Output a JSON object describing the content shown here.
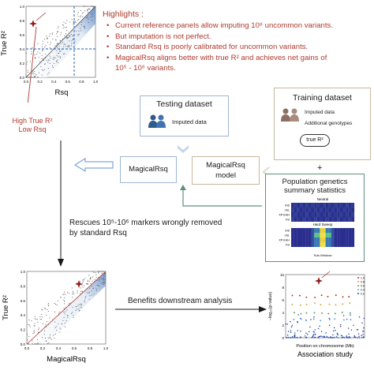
{
  "top_scatter": {
    "ylabel": "True R²",
    "xlabel": "Rsq",
    "yticks": [
      "1.0",
      "0.8",
      "0.6",
      "0.4",
      "0.2",
      "0.0"
    ],
    "xticks": [
      "0.0",
      "0.2",
      "0.4",
      "0.6",
      "0.8",
      "1.0"
    ]
  },
  "annotation": {
    "line1": "High True R²",
    "line2": "Low Rsq"
  },
  "highlights": {
    "title": "Highlights :",
    "items": [
      "Current reference panels allow imputing 10⁸ uncommon variants.",
      "But imputation is not perfect.",
      "Standard Rsq is poorly calibrated for uncommon variants.",
      "MagicalRsq aligns better with true R² and achieves net gains of",
      "10⁵ - 10⁶ variants."
    ]
  },
  "testing": {
    "title": "Testing dataset",
    "item": "Imputed data"
  },
  "training": {
    "title": "Training dataset",
    "item1": "Imputed data",
    "item2": "Additional genotypes",
    "pill": "true R²"
  },
  "model": {
    "output": "MagicalRsq",
    "model_line1": "MagicalRsq",
    "model_line2": "model"
  },
  "plus": "+",
  "popgen": {
    "line1": "Population genetics",
    "line2": "summary statistics",
    "panel1": "Neutral",
    "panel2": "Hard Sweep",
    "rows": [
      "iHS",
      "nSL",
      "XP-EHH",
      "Fst"
    ],
    "xaxis": "Sub-Window"
  },
  "rescues": {
    "line1": "Rescues 10⁵-10⁶ markers wrongly removed",
    "line2": "by standard Rsq"
  },
  "bottom_scatter": {
    "ylabel": "True R²",
    "xlabel": "MagicalRsq",
    "yticks": [
      "1.0",
      "0.8",
      "0.6",
      "0.4",
      "0.2",
      "0.0"
    ],
    "xticks": [
      "0.0",
      "0.2",
      "0.4",
      "0.6",
      "0.8",
      "1.0"
    ]
  },
  "benefits": "Benefits downstream analysis",
  "manhattan": {
    "ylabel": "−log₁₀(p-value)",
    "xlabel": "Position on chromosome (Mb)",
    "caption": "Association study",
    "yticks": [
      "10",
      "8",
      "6",
      "4",
      "2",
      "0"
    ],
    "legend": [
      "1.0",
      "0.8",
      "0.6",
      "0.4",
      "0.2"
    ]
  },
  "colors": {
    "accent_red": "#b03a2e",
    "arrow_blue": "#7fa6d6",
    "dashed_blue": "#4a78c2",
    "dark_blue": "#1f3b6f",
    "box_teal": "#5f8f82",
    "box_tan": "#c9b79c"
  }
}
